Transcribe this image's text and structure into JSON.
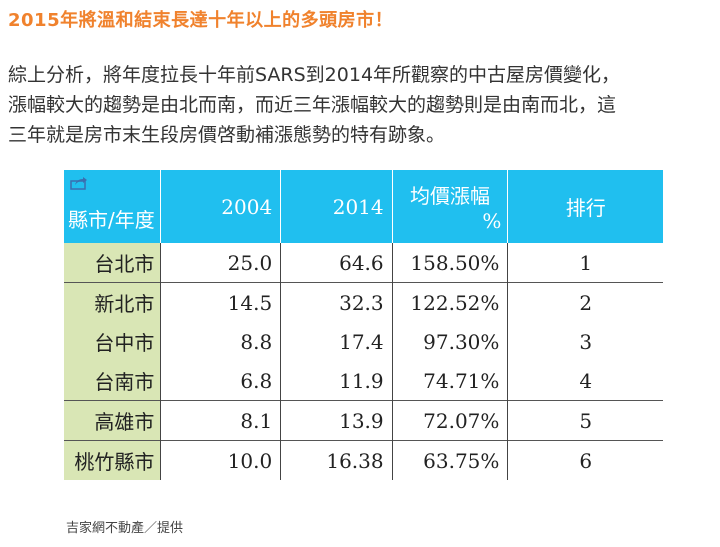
{
  "heading": "2015年將溫和結束長達十年以上的多頭房市！",
  "paragraph": [
    "綜上分析，將年度拉長十年前SARS到2014年所觀察的中古屋房價變化，",
    "漲幅較大的趨勢是由北而南，而近三年漲幅較大的趨勢則是由南而北，這",
    "三年就是房市末生段房價啓動補漲態勢的特有跡象。"
  ],
  "table": {
    "headers": [
      "縣市/年度",
      "2004",
      "2014",
      "均價漲幅",
      "%",
      "排行"
    ],
    "rows": [
      {
        "city": "台北市",
        "y2004": "25.0",
        "y2014": "64.6",
        "pct": "158.50%",
        "rank": "1"
      },
      {
        "city": "新北市",
        "y2004": "14.5",
        "y2014": "32.3",
        "pct": "122.52%",
        "rank": "2"
      },
      {
        "city": "台中市",
        "y2004": "8.8",
        "y2014": "17.4",
        "pct": "97.30%",
        "rank": "3"
      },
      {
        "city": "台南市",
        "y2004": "6.8",
        "y2014": "11.9",
        "pct": "74.71%",
        "rank": "4"
      },
      {
        "city": "高雄市",
        "y2004": "8.1",
        "y2014": "13.9",
        "pct": "72.07%",
        "rank": "5"
      },
      {
        "city": "桃竹縣市",
        "y2004": "10.0",
        "y2014": "16.38",
        "pct": "63.75%",
        "rank": "6"
      }
    ]
  },
  "caption": "吉家網不動產／提供",
  "colors": {
    "heading": "#f0822d",
    "header_bg": "#20bfef",
    "city_bg": "#d9e6b5"
  }
}
